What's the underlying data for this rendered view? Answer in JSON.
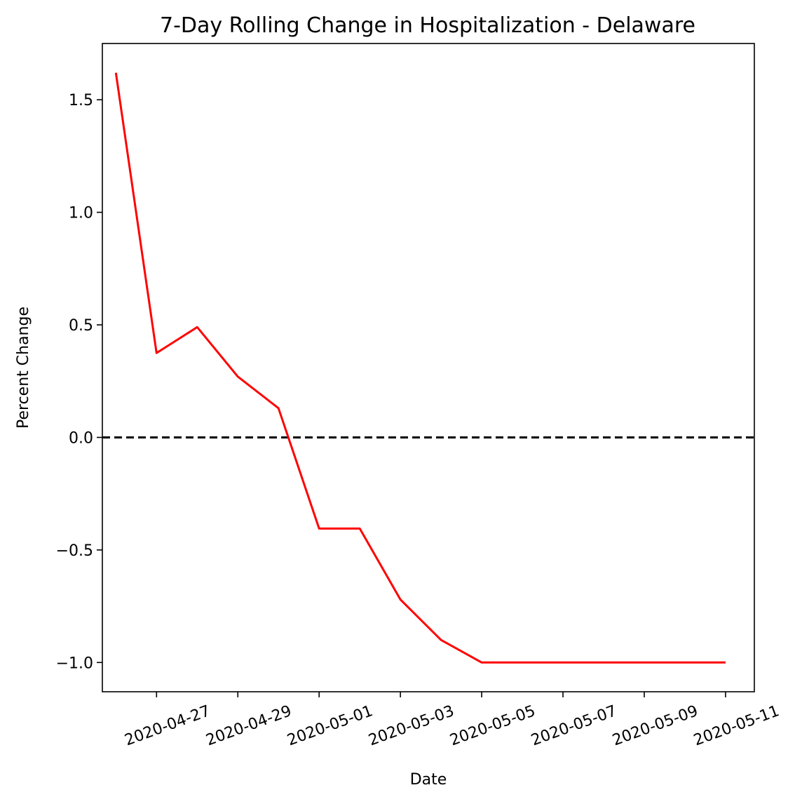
{
  "chart_data": {
    "type": "line",
    "title": "7-Day Rolling Change in Hospitalization - Delaware",
    "xlabel": "Date",
    "ylabel": "Percent Change",
    "x": [
      "2020-04-26",
      "2020-04-27",
      "2020-04-28",
      "2020-04-29",
      "2020-04-30",
      "2020-05-01",
      "2020-05-02",
      "2020-05-03",
      "2020-05-04",
      "2020-05-05",
      "2020-05-06",
      "2020-05-07",
      "2020-05-08",
      "2020-05-09",
      "2020-05-10",
      "2020-05-11"
    ],
    "series": [
      {
        "values": [
          1.62,
          0.375,
          0.49,
          0.27,
          0.13,
          -0.405,
          -0.405,
          -0.72,
          -0.9,
          -1.0,
          -1.0,
          -1.0,
          -1.0,
          -1.0,
          -1.0,
          -1.0
        ],
        "color": "#ff0000"
      }
    ],
    "reference_line": {
      "y": 0.0,
      "style": "dashed",
      "color": "#000000"
    },
    "xlim": [
      "2020-04-25T16:00",
      "2020-05-11T17:00"
    ],
    "ylim": [
      -1.13,
      1.75
    ],
    "x_ticks": [
      "2020-04-27",
      "2020-04-29",
      "2020-05-01",
      "2020-05-03",
      "2020-05-05",
      "2020-05-07",
      "2020-05-09",
      "2020-05-11"
    ],
    "y_ticks": [
      1.5,
      1.0,
      0.5,
      0.0,
      -0.5,
      -1.0
    ],
    "y_tick_labels": [
      "1.5",
      "1.0",
      "0.5",
      "0.0",
      "−0.5",
      "−1.0"
    ],
    "grid": false,
    "legend": "none"
  }
}
